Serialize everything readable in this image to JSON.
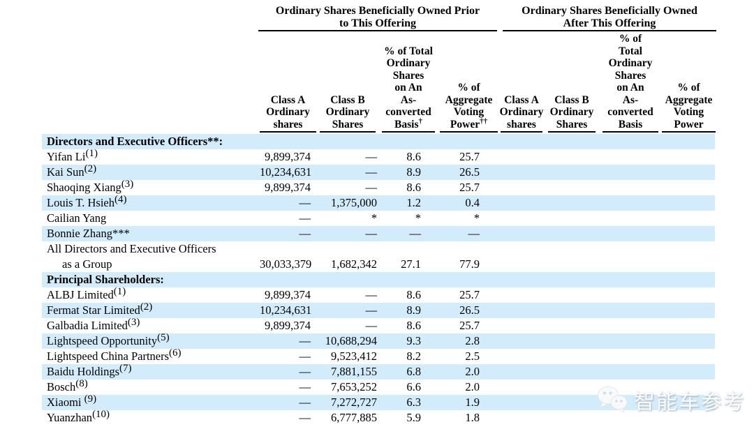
{
  "table": {
    "group_headers": [
      {
        "line1": "Ordinary Shares Beneficially Owned Prior",
        "line2": "to This Offering"
      },
      {
        "line1": "Ordinary Shares Beneficially Owned",
        "line2": "After This Offering"
      }
    ],
    "column_headers": [
      {
        "id": "class-a-prior",
        "lines": [
          "Class A",
          "Ordinary",
          "shares"
        ]
      },
      {
        "id": "class-b-prior",
        "lines": [
          "Class B",
          "Ordinary",
          "Shares"
        ]
      },
      {
        "id": "pct-converted-prior",
        "lines": [
          "% of Total",
          "Ordinary",
          "Shares",
          "on An",
          "As-",
          "converted",
          "Basis†"
        ]
      },
      {
        "id": "pct-voting-prior",
        "lines": [
          "% of",
          "Aggregate",
          "Voting",
          "Power††"
        ]
      },
      {
        "id": "class-a-after",
        "lines": [
          "Class A",
          "Ordinary",
          "shares"
        ]
      },
      {
        "id": "class-b-after",
        "lines": [
          "Class B",
          "Ordinary",
          "Shares"
        ]
      },
      {
        "id": "pct-converted-after",
        "lines": [
          "% of",
          "Total",
          "Ordinary",
          "Shares",
          "on An",
          "As-",
          "converted",
          "Basis"
        ]
      },
      {
        "id": "pct-voting-after",
        "lines": [
          "% of",
          "Aggregate",
          "Voting",
          "Power"
        ]
      }
    ],
    "rows": [
      {
        "label": "Directors and Executive Officers**:",
        "style": "section",
        "bg": "blue",
        "values": [
          "",
          "",
          "",
          ""
        ]
      },
      {
        "label": "Yifan Li",
        "fn": "(1)",
        "bg": "white",
        "values": [
          "9,899,374",
          "—",
          "8.6",
          "25.7"
        ]
      },
      {
        "label": "Kai Sun",
        "fn": "(2)",
        "bg": "blue",
        "values": [
          "10,234,631",
          "—",
          "8.9",
          "26.5"
        ]
      },
      {
        "label": "Shaoqing Xiang",
        "fn": "(3)",
        "bg": "white",
        "values": [
          "9,899,374",
          "—",
          "8.6",
          "25.7"
        ]
      },
      {
        "label": "Louis T. Hsieh",
        "fn": "(4)",
        "bg": "blue",
        "values": [
          "—",
          "1,375,000",
          "1.2",
          "0.4"
        ]
      },
      {
        "label": "Cailian Yang",
        "bg": "white",
        "values": [
          "—",
          "*",
          "*",
          "*"
        ]
      },
      {
        "label": "Bonnie Zhang***",
        "bg": "blue",
        "values": [
          "—",
          "—",
          "—",
          "—"
        ]
      },
      {
        "label": "All Directors and Executive Officers",
        "label2": "as a Group",
        "bg": "white",
        "values": [
          "30,033,379",
          "1,682,342",
          "27.1",
          "77.9"
        ]
      },
      {
        "label": "Principal Shareholders:",
        "style": "section",
        "bg": "blue",
        "values": [
          "",
          "",
          "",
          ""
        ]
      },
      {
        "label": "ALBJ Limited",
        "fn": "(1)",
        "bg": "white",
        "values": [
          "9,899,374",
          "—",
          "8.6",
          "25.7"
        ]
      },
      {
        "label": "Fermat Star Limited",
        "fn": "(2)",
        "bg": "blue",
        "values": [
          "10,234,631",
          "—",
          "8.9",
          "26.5"
        ]
      },
      {
        "label": "Galbadia Limited",
        "fn": "(3)",
        "bg": "white",
        "values": [
          "9,899,374",
          "—",
          "8.6",
          "25.7"
        ]
      },
      {
        "label": "Lightspeed Opportunity",
        "fn": "(5)",
        "bg": "blue",
        "values": [
          "—",
          "10,688,294",
          "9.3",
          "2.8"
        ]
      },
      {
        "label": "Lightspeed China Partners",
        "fn": "(6)",
        "bg": "white",
        "values": [
          "—",
          "9,523,412",
          "8.2",
          "2.5"
        ]
      },
      {
        "label": "Baidu Holdings",
        "fn": "(7)",
        "bg": "blue",
        "values": [
          "—",
          "7,881,155",
          "6.8",
          "2.0"
        ]
      },
      {
        "label": "Bosch",
        "fn": "(8)",
        "bg": "white",
        "values": [
          "—",
          "7,653,252",
          "6.6",
          "2.0"
        ]
      },
      {
        "label": "Xiaomi ",
        "fn": "(9)",
        "bg": "blue",
        "values": [
          "—",
          "7,272,727",
          "6.3",
          "1.9"
        ]
      },
      {
        "label": "Yuanzhan",
        "fn": "(10)",
        "bg": "white",
        "values": [
          "—",
          "6,777,885",
          "5.9",
          "1.8"
        ]
      }
    ]
  },
  "watermark": {
    "text": "智能车参考",
    "icon": "wechat-chat-bubbles-icon"
  },
  "colors": {
    "stripe": "#d3ecfb",
    "text": "#000000",
    "background": "#ffffff"
  }
}
